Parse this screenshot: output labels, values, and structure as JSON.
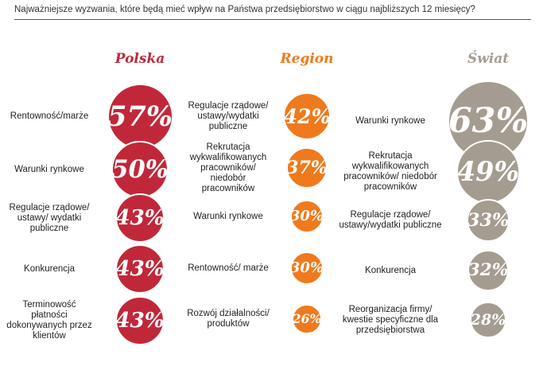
{
  "question": "Najważniejsze wyzwania, które będą mieć wpływ na Państwa przedsiębiorstwo w ciągu najbliższych 12 miesięcy?",
  "colors": {
    "polska": "#c0283a",
    "region": "#ef7a1d",
    "swiat": "#a59c91"
  },
  "chart_data": [
    {
      "type": "bubble",
      "title": "Polska",
      "categories": [
        "Rentowność/marże",
        "Warunki rynkowe",
        "Regulacje rządowe/ ustawy/ wydatki publiczne",
        "Konkurencja",
        "Terminowość płatności dokonywanych przez klientów"
      ],
      "values": [
        57,
        50,
        43,
        43,
        43
      ],
      "value_labels": [
        "57%",
        "50%",
        "43%",
        "43%",
        "43%"
      ]
    },
    {
      "type": "bubble",
      "title": "Region",
      "categories": [
        "Regulacje rządowe/ ustawy/wydatki publiczne",
        "Rekrutacja wykwalifikowanych pracowników/ niedobór pracowników",
        "Warunki rynkowe",
        "Rentowność/ marże",
        "Rozwój działalności/ produktów"
      ],
      "values": [
        42,
        37,
        30,
        30,
        26
      ],
      "value_labels": [
        "42%",
        "37%",
        "30%",
        "30%",
        "26%"
      ]
    },
    {
      "type": "bubble",
      "title": "Świat",
      "categories": [
        "Warunki rynkowe",
        "Rekrutacja wykwalifikowanych pracowników/ niedobór pracowników",
        "Regulacje rządowe/ ustawy/wydatki publiczne",
        "Konkurencja",
        "Reorganizacja firmy/ kwestie specyficzne dla przedsiębiorstwa"
      ],
      "values": [
        63,
        49,
        33,
        32,
        28
      ],
      "value_labels": [
        "63%",
        "49%",
        "33%",
        "32%",
        "28%"
      ]
    }
  ]
}
